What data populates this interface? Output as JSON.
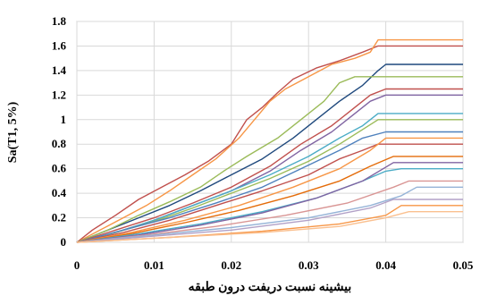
{
  "chart_data": {
    "type": "line",
    "title": "",
    "xlabel": "بیشینه نسبت دریفت درون طبقه",
    "ylabel": "Sa(T1, 5%)",
    "xlim": [
      0,
      0.05
    ],
    "ylim": [
      0,
      1.8
    ],
    "x_ticks": [
      "0",
      "0.01",
      "0.02",
      "0.03",
      "0.04",
      "0.05"
    ],
    "y_ticks": [
      "0",
      "0.2",
      "0.4",
      "0.6",
      "0.8",
      "1",
      "1.2",
      "1.4",
      "1.6",
      "1.8"
    ],
    "grid": true,
    "legend": "none",
    "series": [
      {
        "color": "#c0504d",
        "x": [
          0,
          0.002,
          0.005,
          0.008,
          0.011,
          0.014,
          0.017,
          0.02,
          0.022,
          0.024,
          0.026,
          0.028,
          0.031,
          0.034,
          0.037,
          0.039,
          0.05
        ],
        "y": [
          0,
          0.1,
          0.22,
          0.35,
          0.45,
          0.55,
          0.66,
          0.8,
          1.0,
          1.1,
          1.22,
          1.33,
          1.42,
          1.48,
          1.55,
          1.6,
          1.6
        ]
      },
      {
        "color": "#f79646",
        "x": [
          0,
          0.003,
          0.006,
          0.009,
          0.012,
          0.015,
          0.018,
          0.021,
          0.023,
          0.025,
          0.027,
          0.03,
          0.033,
          0.036,
          0.038,
          0.039,
          0.05
        ],
        "y": [
          0,
          0.1,
          0.2,
          0.3,
          0.42,
          0.55,
          0.68,
          0.85,
          1.0,
          1.15,
          1.25,
          1.35,
          1.45,
          1.5,
          1.55,
          1.65,
          1.65
        ]
      },
      {
        "color": "#1f497d",
        "x": [
          0,
          0.004,
          0.008,
          0.012,
          0.016,
          0.02,
          0.024,
          0.028,
          0.031,
          0.034,
          0.037,
          0.039,
          0.04,
          0.05
        ],
        "y": [
          0,
          0.1,
          0.2,
          0.3,
          0.42,
          0.55,
          0.68,
          0.85,
          1.0,
          1.15,
          1.28,
          1.4,
          1.45,
          1.45
        ]
      },
      {
        "color": "#9bbb59",
        "x": [
          0,
          0.004,
          0.008,
          0.012,
          0.016,
          0.019,
          0.022,
          0.026,
          0.029,
          0.032,
          0.034,
          0.036,
          0.038,
          0.05
        ],
        "y": [
          0,
          0.1,
          0.22,
          0.33,
          0.45,
          0.58,
          0.7,
          0.85,
          1.0,
          1.15,
          1.3,
          1.35,
          1.35,
          1.35
        ]
      },
      {
        "color": "#c0504d",
        "x": [
          0,
          0.005,
          0.01,
          0.015,
          0.02,
          0.025,
          0.029,
          0.033,
          0.036,
          0.038,
          0.04,
          0.05
        ],
        "y": [
          0,
          0.1,
          0.2,
          0.32,
          0.45,
          0.62,
          0.8,
          0.95,
          1.1,
          1.2,
          1.25,
          1.25
        ]
      },
      {
        "color": "#8064a2",
        "x": [
          0,
          0.005,
          0.01,
          0.015,
          0.02,
          0.025,
          0.029,
          0.033,
          0.036,
          0.038,
          0.04,
          0.05
        ],
        "y": [
          0,
          0.08,
          0.18,
          0.3,
          0.42,
          0.58,
          0.75,
          0.9,
          1.05,
          1.15,
          1.2,
          1.2
        ]
      },
      {
        "color": "#4bacc6",
        "x": [
          0,
          0.005,
          0.01,
          0.015,
          0.02,
          0.025,
          0.03,
          0.034,
          0.037,
          0.039,
          0.05
        ],
        "y": [
          0,
          0.08,
          0.18,
          0.3,
          0.42,
          0.55,
          0.7,
          0.85,
          0.95,
          1.05,
          1.05
        ]
      },
      {
        "color": "#9bbb59",
        "x": [
          0,
          0.005,
          0.01,
          0.015,
          0.02,
          0.025,
          0.03,
          0.034,
          0.037,
          0.039,
          0.05
        ],
        "y": [
          0,
          0.08,
          0.17,
          0.28,
          0.4,
          0.52,
          0.66,
          0.8,
          0.92,
          1.0,
          1.0
        ]
      },
      {
        "color": "#4f81bd",
        "x": [
          0,
          0.006,
          0.012,
          0.018,
          0.024,
          0.029,
          0.034,
          0.037,
          0.04,
          0.05
        ],
        "y": [
          0,
          0.1,
          0.2,
          0.32,
          0.45,
          0.6,
          0.75,
          0.85,
          0.9,
          0.9
        ]
      },
      {
        "color": "#c0504d",
        "x": [
          0,
          0.006,
          0.012,
          0.018,
          0.024,
          0.03,
          0.034,
          0.037,
          0.039,
          0.05
        ],
        "y": [
          0,
          0.08,
          0.18,
          0.3,
          0.42,
          0.55,
          0.68,
          0.75,
          0.8,
          0.8
        ]
      },
      {
        "color": "#f79646",
        "x": [
          0,
          0.007,
          0.014,
          0.021,
          0.028,
          0.034,
          0.038,
          0.04,
          0.05
        ],
        "y": [
          0,
          0.08,
          0.18,
          0.3,
          0.45,
          0.6,
          0.75,
          0.85,
          0.85
        ]
      },
      {
        "color": "#e46c0a",
        "x": [
          0,
          0.007,
          0.014,
          0.021,
          0.028,
          0.034,
          0.038,
          0.041,
          0.05
        ],
        "y": [
          0,
          0.07,
          0.16,
          0.26,
          0.38,
          0.5,
          0.62,
          0.7,
          0.7
        ]
      },
      {
        "color": "#4bacc6",
        "x": [
          0,
          0.008,
          0.016,
          0.024,
          0.031,
          0.037,
          0.04,
          0.042,
          0.05
        ],
        "y": [
          0,
          0.07,
          0.15,
          0.25,
          0.36,
          0.5,
          0.58,
          0.6,
          0.6
        ]
      },
      {
        "color": "#8064a2",
        "x": [
          0,
          0.008,
          0.016,
          0.024,
          0.031,
          0.037,
          0.041,
          0.05
        ],
        "y": [
          0,
          0.06,
          0.14,
          0.24,
          0.36,
          0.5,
          0.65,
          0.65
        ]
      },
      {
        "color": "#d99594",
        "x": [
          0,
          0.009,
          0.018,
          0.027,
          0.035,
          0.041,
          0.043,
          0.05
        ],
        "y": [
          0,
          0.06,
          0.13,
          0.22,
          0.32,
          0.45,
          0.5,
          0.5
        ]
      },
      {
        "color": "#95b3d7",
        "x": [
          0,
          0.01,
          0.02,
          0.03,
          0.038,
          0.042,
          0.044,
          0.05
        ],
        "y": [
          0,
          0.06,
          0.12,
          0.2,
          0.3,
          0.38,
          0.45,
          0.45
        ]
      },
      {
        "color": "#b2a1c7",
        "x": [
          0,
          0.01,
          0.02,
          0.03,
          0.038,
          0.041,
          0.05
        ],
        "y": [
          0,
          0.05,
          0.1,
          0.18,
          0.28,
          0.35,
          0.35
        ]
      },
      {
        "color": "#f79646",
        "x": [
          0,
          0.012,
          0.024,
          0.034,
          0.04,
          0.042,
          0.05
        ],
        "y": [
          0,
          0.04,
          0.09,
          0.15,
          0.22,
          0.3,
          0.3
        ]
      },
      {
        "color": "#fac090",
        "x": [
          0,
          0.012,
          0.024,
          0.034,
          0.04,
          0.043,
          0.05
        ],
        "y": [
          0,
          0.04,
          0.08,
          0.13,
          0.2,
          0.25,
          0.25
        ]
      }
    ]
  }
}
